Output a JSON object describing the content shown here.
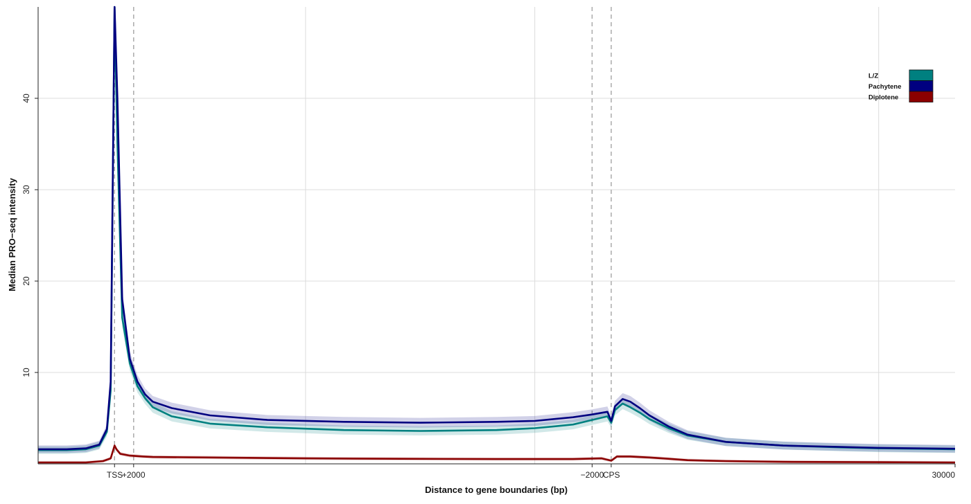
{
  "chart_data": {
    "type": "line",
    "title": "",
    "xlabel": "Distance to gene boundaries (bp)",
    "ylabel": "Median PRO−seq intensity",
    "ylim": [
      0,
      50
    ],
    "yticks": [
      10,
      20,
      30,
      40
    ],
    "x_tick_labels": [
      "TSS",
      "+2000",
      "−2000",
      "CPS",
      "30000"
    ],
    "grid": true,
    "legend_position": "top-right",
    "colors": {
      "L/Z": "#008080",
      "Pachytene": "#000080",
      "Diplotene": "#8B0000"
    },
    "series": [
      {
        "name": "L/Z",
        "color": "#008080",
        "x": [
          -4000,
          -2500,
          -1500,
          -800,
          -400,
          -200,
          0,
          150,
          400,
          800,
          1200,
          1600,
          2000,
          3000,
          5000,
          8000,
          12000,
          16000,
          20000,
          22000,
          23000,
          24000,
          25000,
          25800,
          26000,
          26200,
          26600,
          27000,
          27500,
          28000,
          29000,
          30000,
          32000,
          35000,
          38000,
          40000,
          42000,
          44000
        ],
        "values": [
          1.5,
          1.5,
          1.6,
          2.0,
          3.5,
          8.0,
          50,
          35,
          16,
          11,
          8.5,
          7.2,
          6.2,
          5.2,
          4.4,
          4.0,
          3.7,
          3.6,
          3.7,
          3.9,
          4.1,
          4.3,
          4.8,
          5.2,
          4.5,
          5.9,
          6.6,
          6.2,
          5.6,
          4.9,
          3.9,
          3.1,
          2.4,
          2.0,
          1.8,
          1.7,
          1.65,
          1.6
        ]
      },
      {
        "name": "Pachytene",
        "color": "#000080",
        "x": [
          -4000,
          -2500,
          -1500,
          -800,
          -400,
          -200,
          0,
          150,
          400,
          800,
          1200,
          1600,
          2000,
          3000,
          5000,
          8000,
          12000,
          16000,
          20000,
          22000,
          23000,
          24000,
          25000,
          25800,
          26000,
          26200,
          26600,
          27000,
          27500,
          28000,
          29000,
          30000,
          32000,
          35000,
          38000,
          40000,
          42000,
          44000
        ],
        "values": [
          1.6,
          1.6,
          1.7,
          2.1,
          3.8,
          9.0,
          50,
          40,
          18,
          11.5,
          9.0,
          7.6,
          6.8,
          6.1,
          5.3,
          4.8,
          4.6,
          4.5,
          4.6,
          4.7,
          4.9,
          5.1,
          5.4,
          5.7,
          4.7,
          6.3,
          7.1,
          6.8,
          6.1,
          5.3,
          4.1,
          3.2,
          2.4,
          2.0,
          1.85,
          1.75,
          1.7,
          1.65
        ]
      },
      {
        "name": "Diplotene",
        "color": "#8B0000",
        "x": [
          -4000,
          -1500,
          -600,
          -200,
          0,
          100,
          300,
          800,
          1500,
          2000,
          5000,
          10000,
          15000,
          20000,
          24000,
          25500,
          26000,
          26300,
          27000,
          28000,
          29000,
          30000,
          32000,
          35000,
          40000,
          44000
        ],
        "values": [
          0.15,
          0.15,
          0.3,
          0.6,
          2.0,
          1.6,
          1.1,
          0.9,
          0.8,
          0.75,
          0.7,
          0.6,
          0.55,
          0.52,
          0.52,
          0.6,
          0.35,
          0.8,
          0.8,
          0.7,
          0.55,
          0.4,
          0.3,
          0.22,
          0.18,
          0.15
        ]
      }
    ]
  }
}
